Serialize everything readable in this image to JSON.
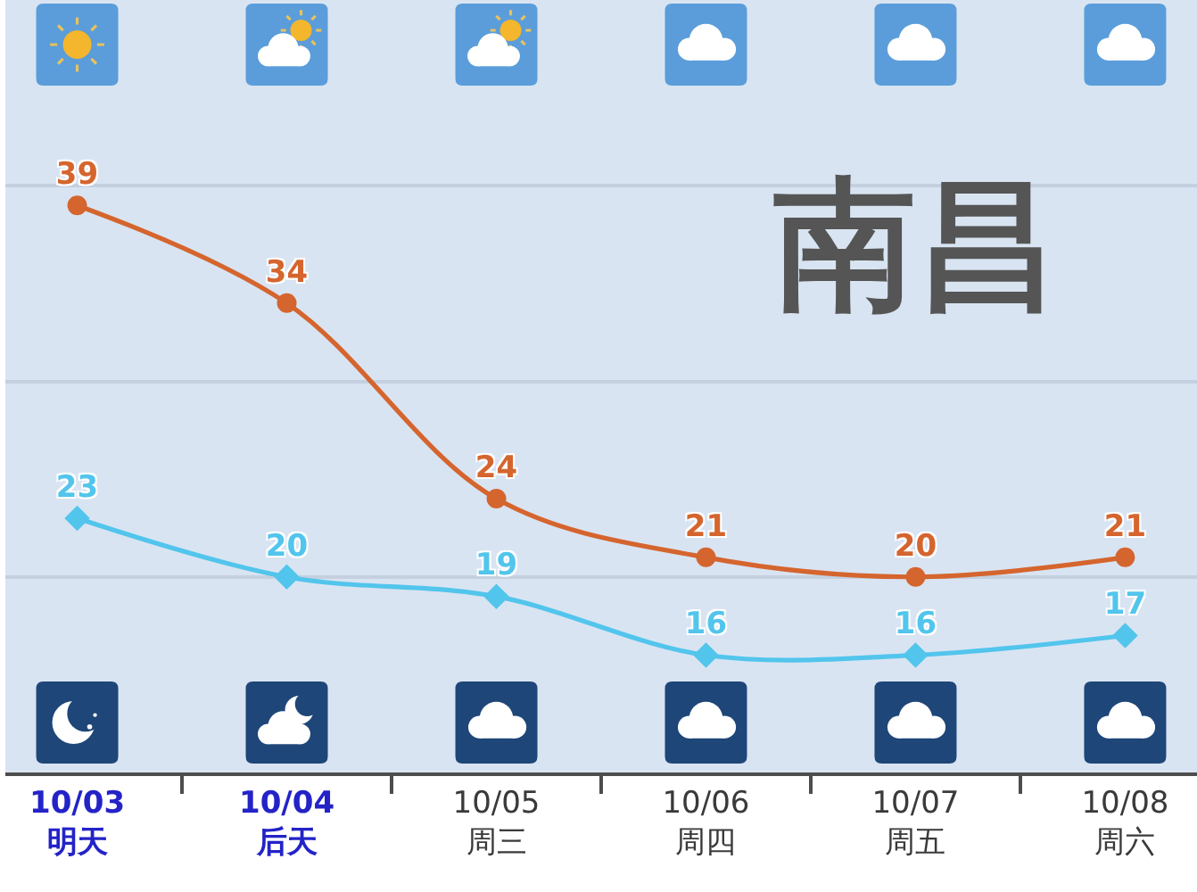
{
  "chart_data": {
    "type": "line",
    "title": "南昌",
    "categories": [
      "10/03\n明天",
      "10/04\n后天",
      "10/05\n周三",
      "10/06\n周四",
      "10/07\n周五",
      "10/08\n周六"
    ],
    "series": [
      {
        "color": "#d5652e",
        "values": [
          39,
          34,
          24,
          21,
          20,
          21
        ],
        "marker": "circle"
      },
      {
        "color": "#52c5ec",
        "values": [
          23,
          20,
          19,
          16,
          16,
          17
        ],
        "marker": "diamond"
      }
    ],
    "ylim": [
      10,
      49.5
    ],
    "yticks": [
      {
        "value": 20,
        "label": null
      },
      {
        "value": 30,
        "label": null
      },
      {
        "value": 40,
        "label": null
      }
    ],
    "grid": "y",
    "tick_labels": "x",
    "data_labels": true,
    "line_style": "solid"
  }
}
